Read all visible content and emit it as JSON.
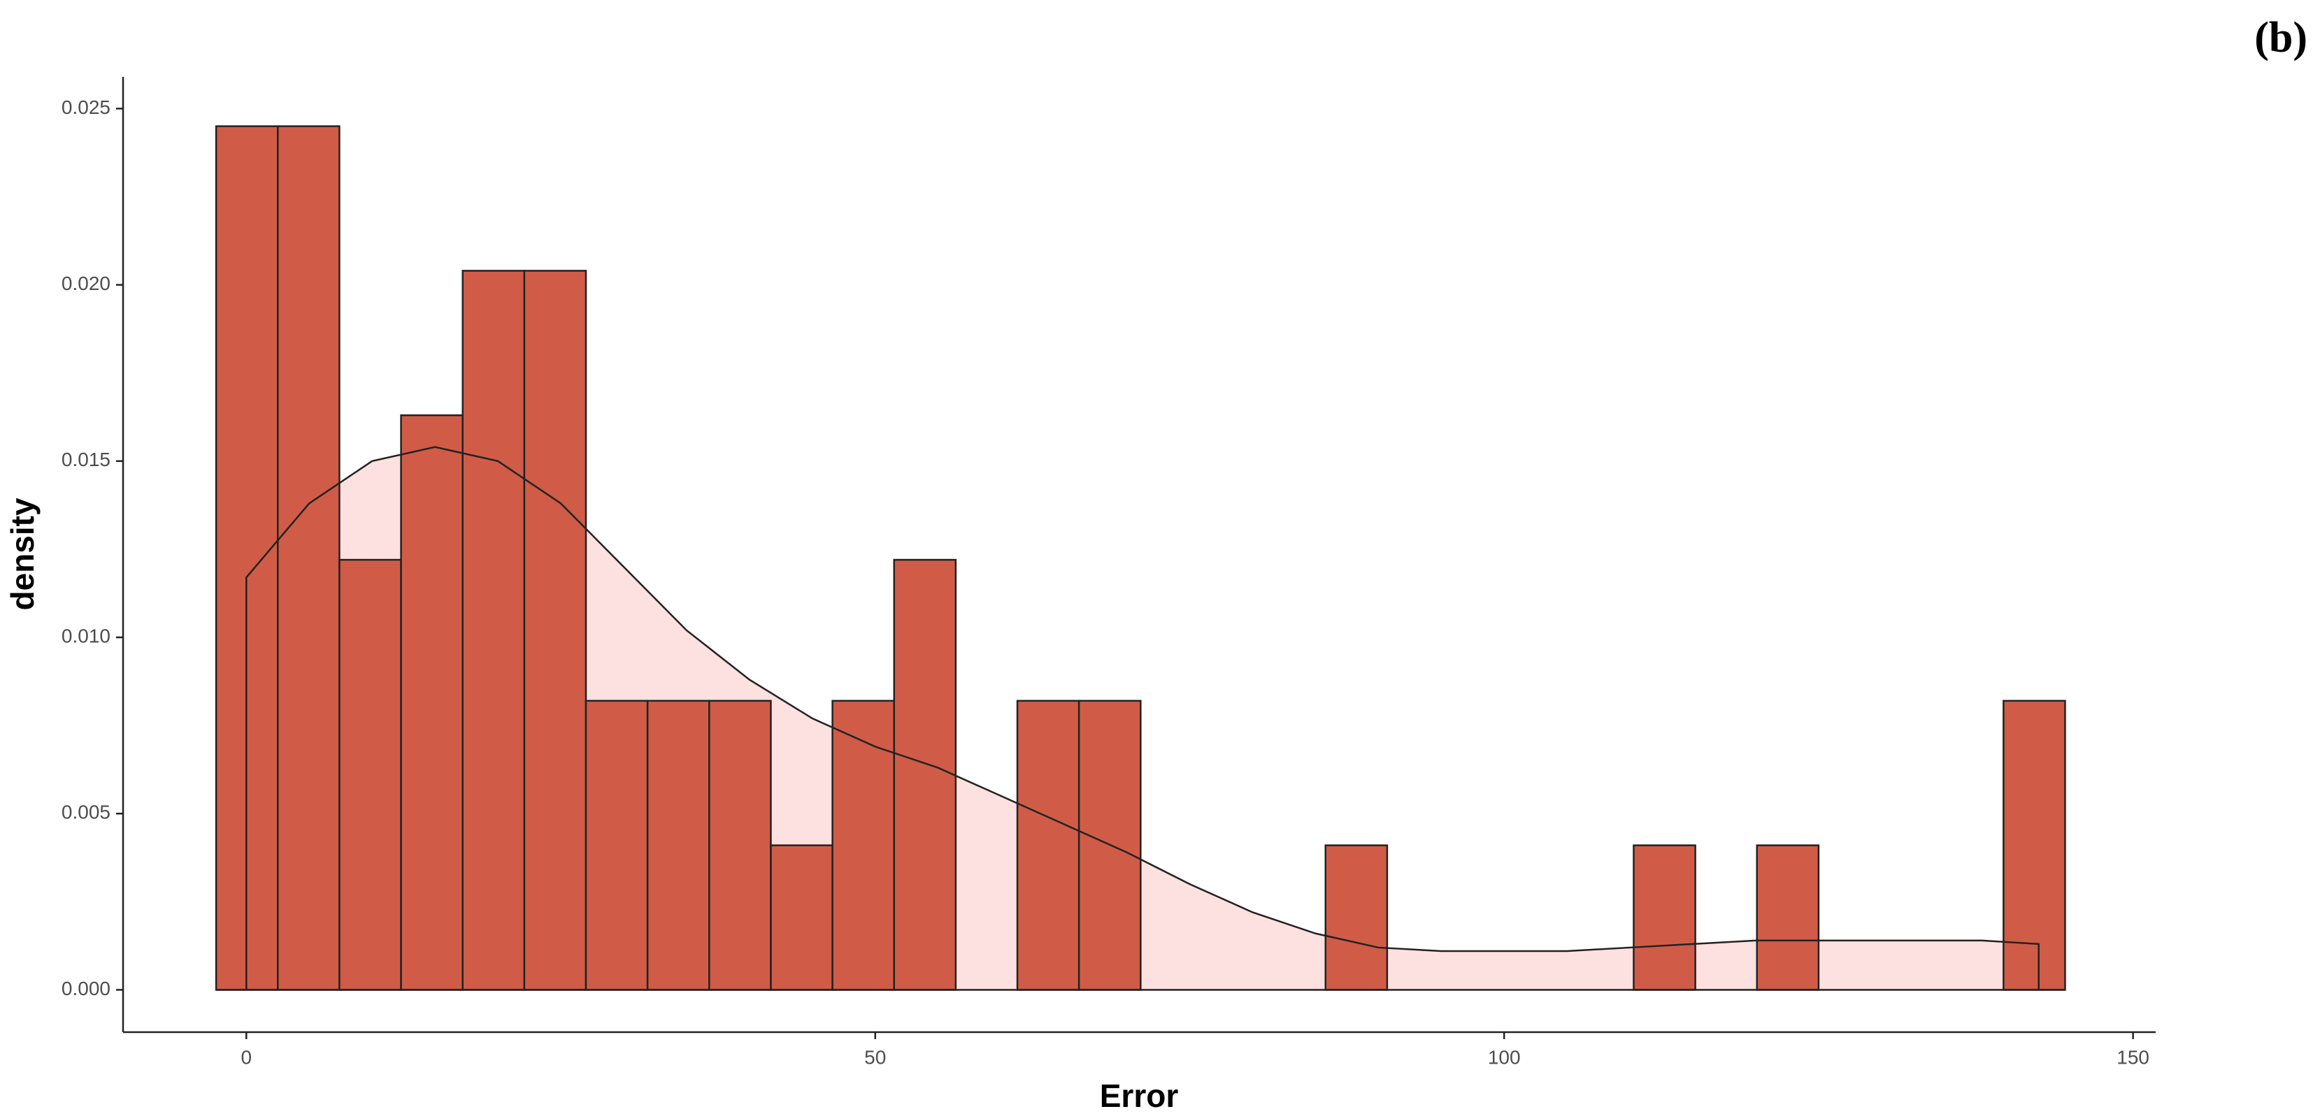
{
  "chart_data": {
    "type": "histogram",
    "panel_label": "(b)",
    "xlabel": "Error",
    "ylabel": "density",
    "bins": [
      -2.4,
      2.5,
      7.4,
      12.3,
      17.2,
      22.1,
      27,
      31.9,
      36.8,
      41.7,
      46.6,
      51.5,
      56.4,
      61.3,
      66.2,
      71.1,
      76,
      80.9,
      85.8,
      90.7,
      95.6,
      100.5,
      105.4,
      110.3,
      115.2,
      120.1,
      125,
      129.9,
      134.8,
      139.7,
      144.6
    ],
    "values": [
      0.0245,
      0.0245,
      0.0122,
      0.0163,
      0.0204,
      0.0204,
      0.0082,
      0.0082,
      0.0082,
      0.0041,
      0.0082,
      0.0122,
      0,
      0.0082,
      0.0082,
      0,
      0,
      0,
      0.0041,
      0,
      0,
      0,
      0,
      0.0041,
      0,
      0.0041,
      0,
      0,
      0,
      0.0082
    ],
    "color": "#d05c48",
    "density_curve": {
      "color": "#fde0e0",
      "x": [
        0,
        5,
        10,
        15,
        20,
        25,
        30,
        35,
        40,
        45,
        50,
        55,
        60,
        65,
        70,
        75,
        80,
        85,
        90,
        95,
        100,
        105,
        110,
        115,
        120,
        130,
        138,
        142.5
      ],
      "values": [
        0.0117,
        0.0138,
        0.015,
        0.0154,
        0.015,
        0.0138,
        0.012,
        0.0102,
        0.0088,
        0.0077,
        0.0069,
        0.0063,
        0.0055,
        0.0047,
        0.0039,
        0.003,
        0.0022,
        0.0016,
        0.0012,
        0.0011,
        0.0011,
        0.0011,
        0.0012,
        0.0013,
        0.0014,
        0.0014,
        0.0014,
        0.0013
      ]
    },
    "xlim": [
      -9.8,
      151.8
    ],
    "ylim": [
      -0.0012,
      0.0259
    ],
    "xticks": [
      0,
      50,
      100,
      150
    ],
    "yticks": [
      {
        "value": 0,
        "label": "0.000"
      },
      {
        "value": 0.005,
        "label": "0.005"
      },
      {
        "value": 0.01,
        "label": "0.010"
      },
      {
        "value": 0.015,
        "label": "0.015"
      },
      {
        "value": 0.02,
        "label": "0.020"
      },
      {
        "value": 0.025,
        "label": "0.025"
      }
    ]
  }
}
